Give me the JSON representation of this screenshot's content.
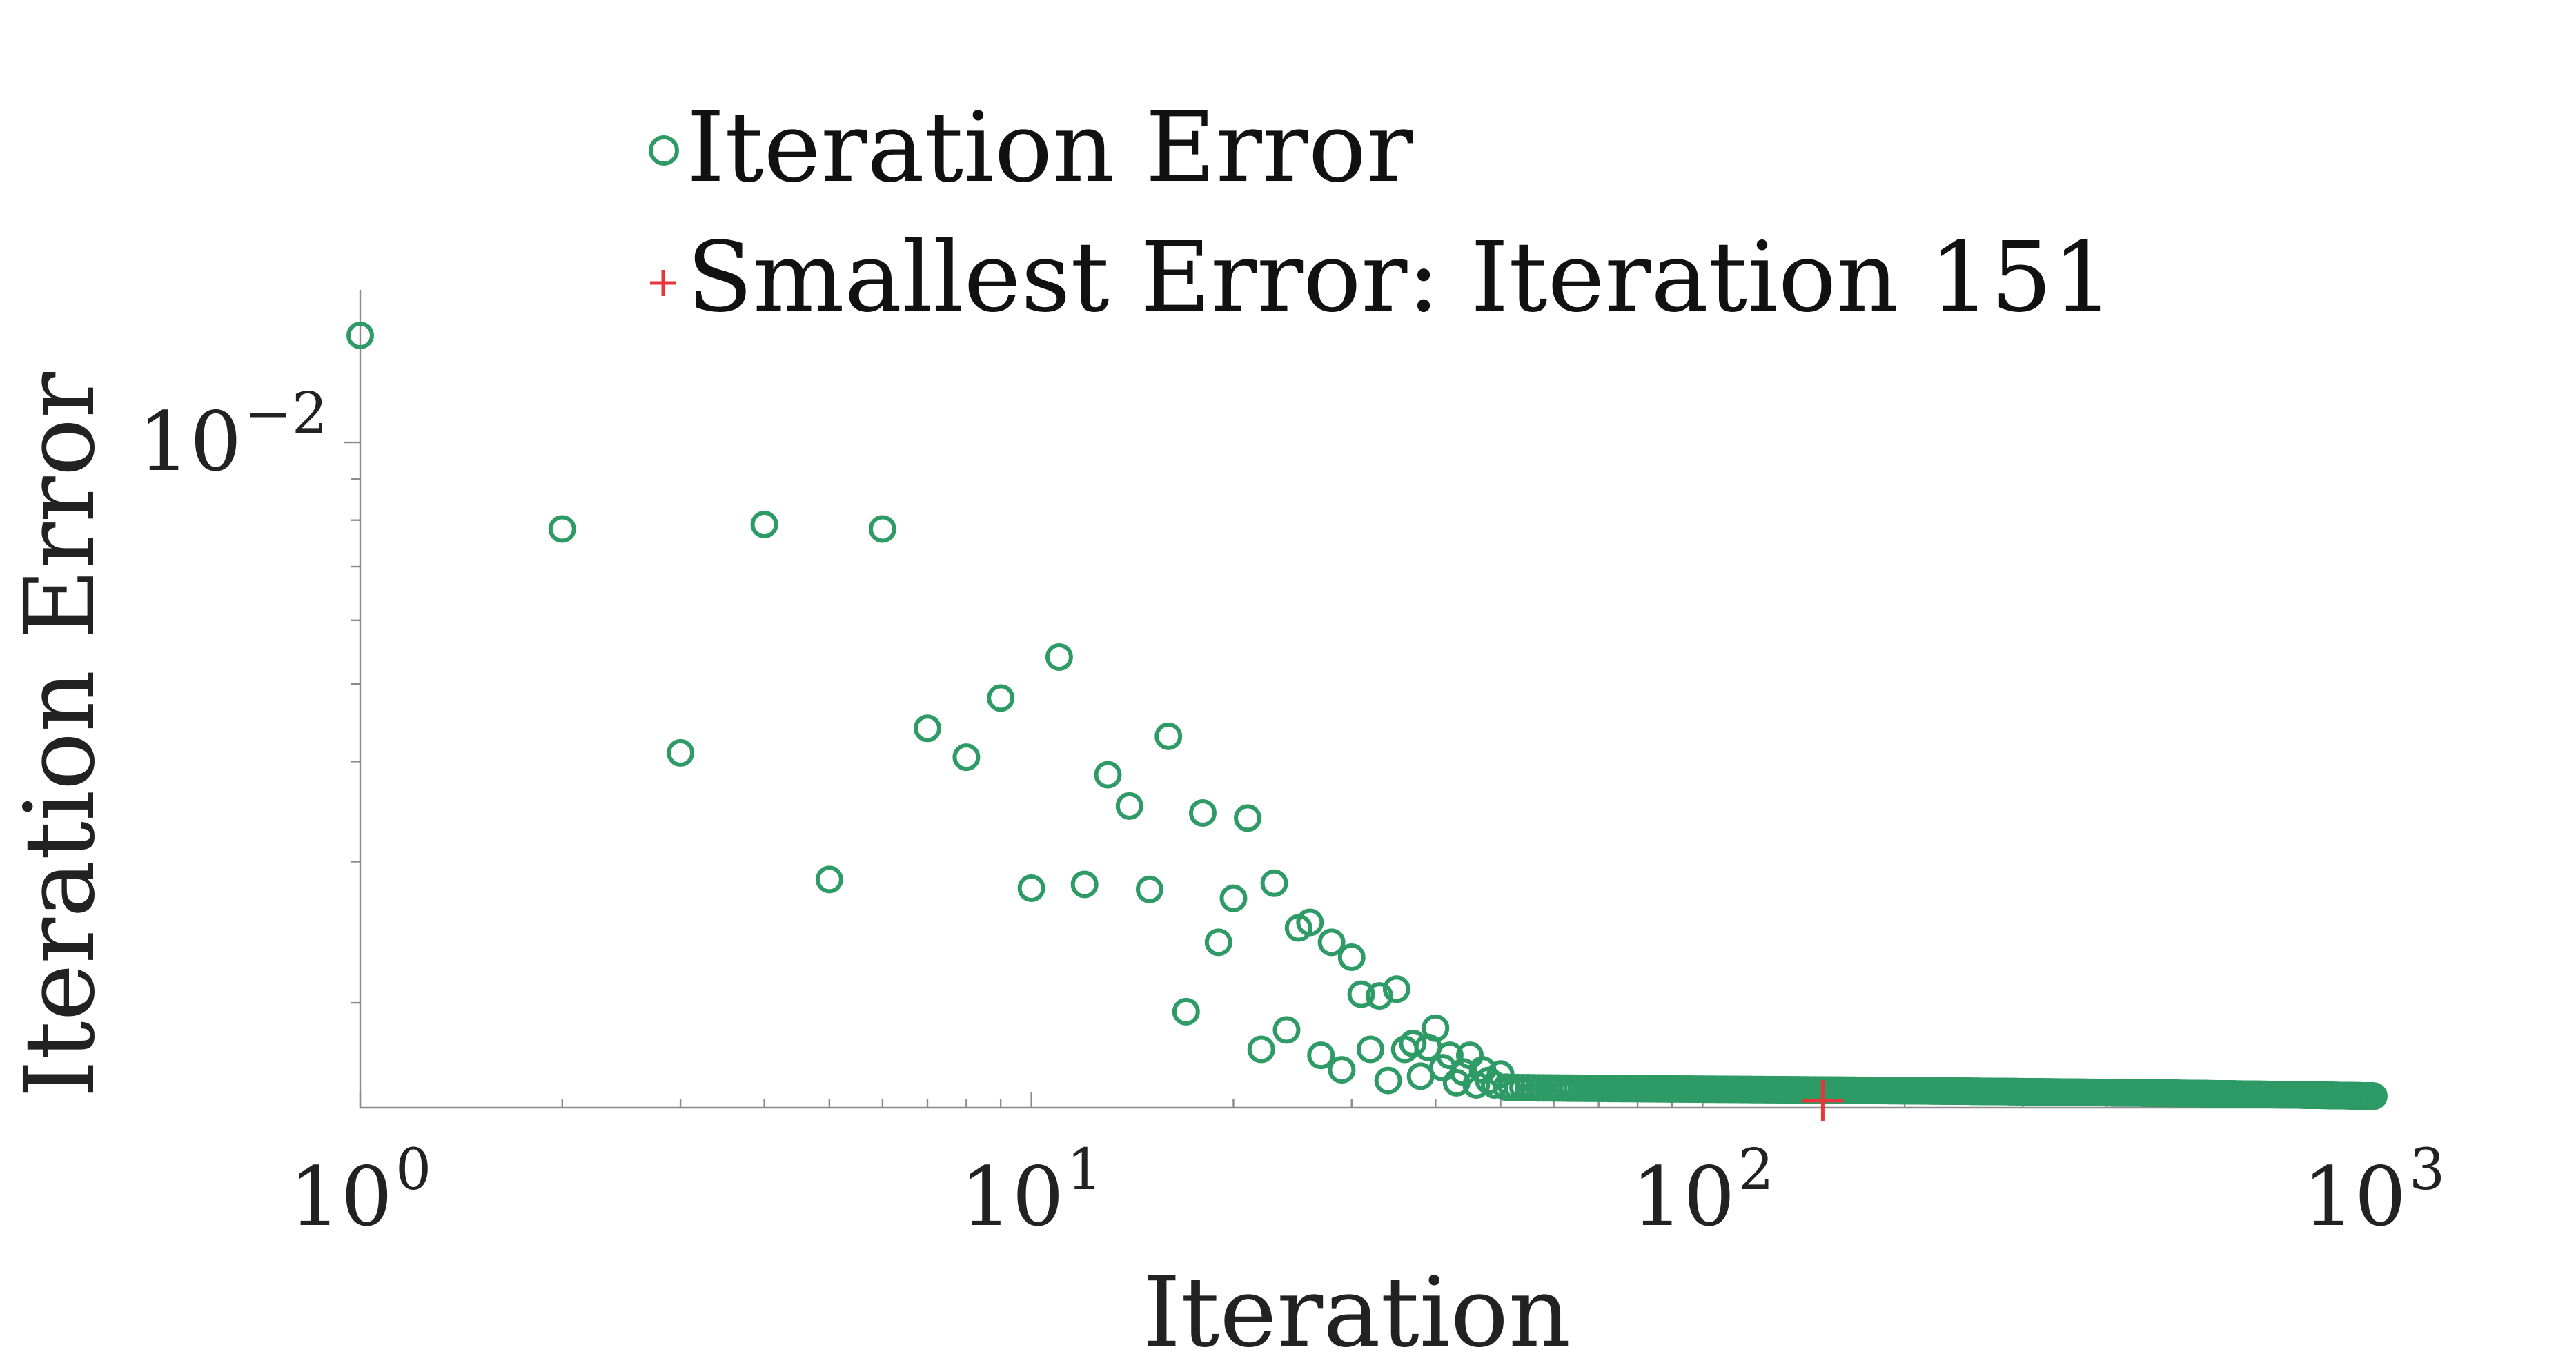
{
  "chart_data": {
    "type": "scatter",
    "xlabel": "Iteration",
    "ylabel": "Iteration Error",
    "xscale": "log",
    "yscale": "log",
    "xlim": [
      1,
      1000
    ],
    "ylim": [
      0.00148,
      0.0155
    ],
    "grid": false,
    "legend_position": "top-center",
    "x_ticks": [
      {
        "value": 1,
        "base": "10",
        "exp": "0"
      },
      {
        "value": 10,
        "base": "10",
        "exp": "1"
      },
      {
        "value": 100,
        "base": "10",
        "exp": "2"
      },
      {
        "value": 1000,
        "base": "10",
        "exp": "3"
      }
    ],
    "y_major_ticks": [
      {
        "value": 0.01,
        "base": "10",
        "exp": "−2"
      }
    ],
    "y_minor_ticks": [
      0.002,
      0.003,
      0.004,
      0.005,
      0.006,
      0.007,
      0.008,
      0.009
    ],
    "series": [
      {
        "name": "Iteration Error",
        "marker": "circle-open",
        "color": "#2e9a66",
        "x": [
          1,
          2,
          3,
          4,
          5,
          6,
          7,
          8,
          9,
          10,
          11,
          12,
          13,
          14,
          15,
          16,
          17,
          18,
          19,
          20,
          21,
          22,
          23,
          24,
          25,
          26,
          27,
          28,
          29,
          30,
          31,
          32,
          33,
          34,
          35,
          36,
          37,
          38,
          39,
          40,
          41,
          42,
          43,
          44,
          45,
          46,
          47,
          48,
          49,
          50
        ],
        "y": [
          0.0136,
          0.0078,
          0.0041,
          0.0079,
          0.00285,
          0.0078,
          0.0044,
          0.00405,
          0.0048,
          0.00278,
          0.0054,
          0.00281,
          0.00385,
          0.00352,
          0.00277,
          0.0043,
          0.00195,
          0.00345,
          0.00238,
          0.0027,
          0.0034,
          0.00175,
          0.00282,
          0.00185,
          0.00248,
          0.00252,
          0.00172,
          0.00238,
          0.00165,
          0.00228,
          0.00205,
          0.00175,
          0.00204,
          0.0016,
          0.00208,
          0.00175,
          0.00178,
          0.00162,
          0.00176,
          0.00186,
          0.00166,
          0.00172,
          0.00159,
          0.00164,
          0.00172,
          0.00158,
          0.00165,
          0.0016,
          0.00158,
          0.00163
        ],
        "tail": {
          "x_from": 51,
          "x_to": 1000,
          "y_start": 0.00157,
          "y_end": 0.00153
        }
      },
      {
        "name": "Smallest Error: Iteration 151",
        "marker": "plus",
        "color": "#e8363c",
        "x": [
          151
        ],
        "y": [
          0.00151
        ]
      }
    ]
  }
}
